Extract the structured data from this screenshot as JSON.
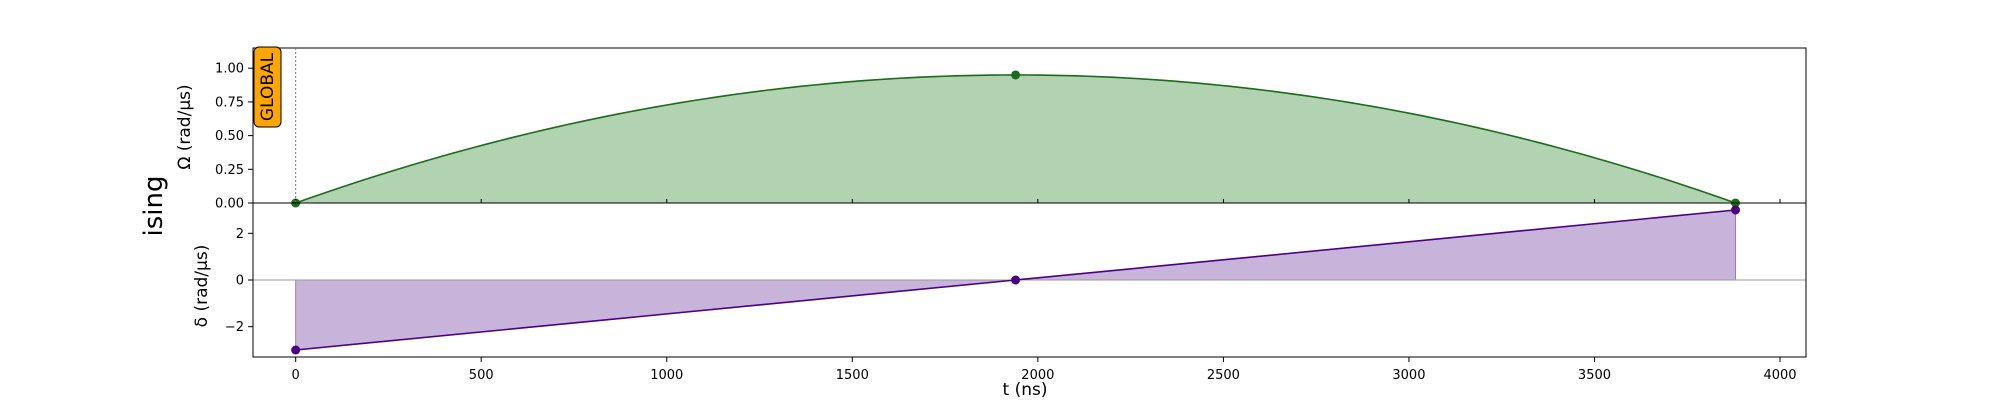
{
  "figure_label": "ising",
  "badge": {
    "label": "GLOBAL",
    "fill": "#ffa500"
  },
  "chart_data": [
    {
      "name": "amplitude",
      "type": "area",
      "ylabel": "Ω (rad/µs)",
      "xlim": [
        -115,
        4070
      ],
      "ylim": [
        0,
        1.15
      ],
      "yticks": [
        0.0,
        0.25,
        0.5,
        0.75,
        1.0
      ],
      "ytick_labels": [
        "0.00",
        "0.25",
        "0.50",
        "0.75",
        "1.00"
      ],
      "color": "#1a6b1a",
      "fill": "#b2d3b2",
      "curve": "parabola",
      "x": [
        0,
        1940,
        3880
      ],
      "y": [
        0,
        0.95,
        0
      ],
      "markers": [
        {
          "x": 0,
          "y": 0
        },
        {
          "x": 1940,
          "y": 0.95
        },
        {
          "x": 3880,
          "y": 0
        }
      ]
    },
    {
      "name": "detuning",
      "type": "area",
      "ylabel": "δ (rad/µs)",
      "xlim": [
        -115,
        4070
      ],
      "ylim": [
        -3.3,
        3.3
      ],
      "yticks": [
        -2,
        0,
        2
      ],
      "ytick_labels": [
        "−2",
        "0",
        "2"
      ],
      "color": "#4b0082",
      "fill": "#c8b3db",
      "curve": "linear",
      "x": [
        0,
        1940,
        3880
      ],
      "y": [
        -3,
        0,
        3
      ],
      "markers": [
        {
          "x": 0,
          "y": -3
        },
        {
          "x": 1940,
          "y": 0
        },
        {
          "x": 3880,
          "y": 3
        }
      ]
    }
  ],
  "xaxis": {
    "label": "t (ns)",
    "ticks": [
      0,
      500,
      1000,
      1500,
      2000,
      2500,
      3000,
      3500,
      4000
    ],
    "tick_labels": [
      "0",
      "500",
      "1000",
      "1500",
      "2000",
      "2500",
      "3000",
      "3500",
      "4000"
    ]
  }
}
